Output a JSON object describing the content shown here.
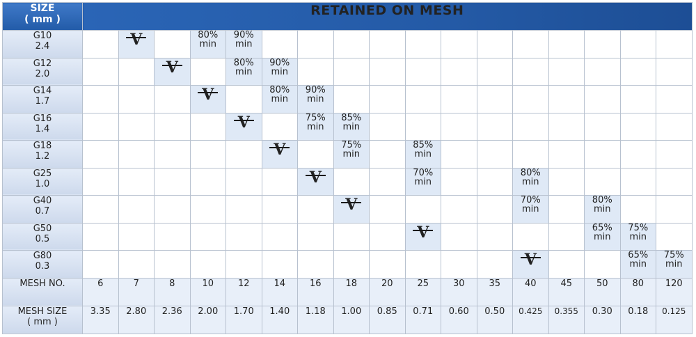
{
  "header": {
    "size_label_line1": "SIZE",
    "size_label_line2": "( mm )",
    "banner": "RETAINED ON MESH"
  },
  "mesh_numbers": [
    "6",
    "7",
    "8",
    "10",
    "12",
    "14",
    "16",
    "18",
    "20",
    "25",
    "30",
    "35",
    "40",
    "45",
    "50",
    "80",
    "120"
  ],
  "mesh_sizes": [
    "3.35",
    "2.80",
    "2.36",
    "2.00",
    "1.70",
    "1.40",
    "1.18",
    "1.00",
    "0.85",
    "0.71",
    "0.60",
    "0.50",
    "0.425",
    "0.355",
    "0.30",
    "0.18",
    "0.125"
  ],
  "footer": {
    "mesh_no_label": "MESH NO.",
    "mesh_size_label_line1": "MESH SIZE",
    "mesh_size_label_line2": "( mm )"
  },
  "check_symbol": "V",
  "grades": [
    {
      "name": "G10",
      "size": "2.4",
      "check_col": 1,
      "values": [
        {
          "col": 3,
          "pct": "80%",
          "note": "min"
        },
        {
          "col": 4,
          "pct": "90%",
          "note": "min"
        }
      ]
    },
    {
      "name": "G12",
      "size": "2.0",
      "check_col": 2,
      "values": [
        {
          "col": 4,
          "pct": "80%",
          "note": "min"
        },
        {
          "col": 5,
          "pct": "90%",
          "note": "min"
        }
      ]
    },
    {
      "name": "G14",
      "size": "1.7",
      "check_col": 3,
      "values": [
        {
          "col": 5,
          "pct": "80%",
          "note": "min"
        },
        {
          "col": 6,
          "pct": "90%",
          "note": "min"
        }
      ]
    },
    {
      "name": "G16",
      "size": "1.4",
      "check_col": 4,
      "values": [
        {
          "col": 6,
          "pct": "75%",
          "note": "min"
        },
        {
          "col": 7,
          "pct": "85%",
          "note": "min"
        }
      ]
    },
    {
      "name": "G18",
      "size": "1.2",
      "check_col": 5,
      "values": [
        {
          "col": 7,
          "pct": "75%",
          "note": "min"
        },
        {
          "col": 9,
          "pct": "85%",
          "note": "min"
        }
      ]
    },
    {
      "name": "G25",
      "size": "1.0",
      "check_col": 6,
      "values": [
        {
          "col": 9,
          "pct": "70%",
          "note": "min"
        },
        {
          "col": 12,
          "pct": "80%",
          "note": "min"
        }
      ]
    },
    {
      "name": "G40",
      "size": "0.7",
      "check_col": 7,
      "values": [
        {
          "col": 12,
          "pct": "70%",
          "note": "min"
        },
        {
          "col": 14,
          "pct": "80%",
          "note": "min"
        }
      ]
    },
    {
      "name": "G50",
      "size": "0.5",
      "check_col": 9,
      "values": [
        {
          "col": 14,
          "pct": "65%",
          "note": "min"
        },
        {
          "col": 15,
          "pct": "75%",
          "note": "min"
        }
      ]
    },
    {
      "name": "G80",
      "size": "0.3",
      "check_col": 12,
      "values": [
        {
          "col": 15,
          "pct": "65%",
          "note": "min"
        },
        {
          "col": 16,
          "pct": "75%",
          "note": "min"
        }
      ]
    }
  ]
}
